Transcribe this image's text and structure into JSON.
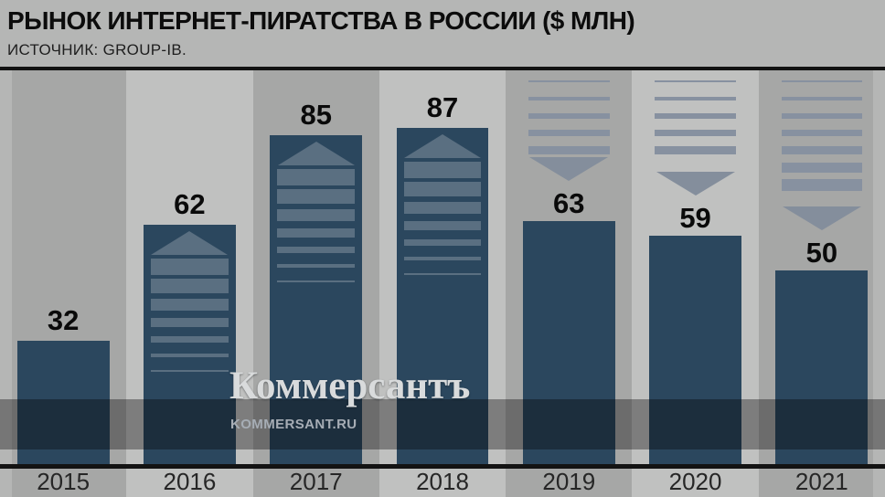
{
  "header": {
    "title": "РЫНОК ИНТЕРНЕТ-ПИРАТСТВА В РОССИИ ($ МЛН)",
    "source": "ИСТОЧНИК: GROUP-IB."
  },
  "watermark": {
    "logo": "Коммерсантъ",
    "url": "KOMMERSANT.RU"
  },
  "chart_data": {
    "type": "bar",
    "title": "РЫНОК ИНТЕРНЕТ-ПИРАТСТВА В РОССИИ ($ МЛН)",
    "source": "ИСТОЧНИК: GROUP-IB.",
    "unit": "$ млн",
    "categories": [
      "2015",
      "2016",
      "2017",
      "2018",
      "2019",
      "2020",
      "2021"
    ],
    "values": [
      32,
      62,
      85,
      87,
      63,
      59,
      50
    ],
    "trends": [
      "none",
      "up",
      "up",
      "up",
      "down",
      "down",
      "down"
    ],
    "ylim": [
      0,
      100
    ],
    "legend": "none",
    "grid": "off",
    "colors": {
      "bar": "#2b475e",
      "up_arrow_stripe": "#5a6f81",
      "down_arrow_stripe": "#8791a0",
      "down_arrow_triangle": "#848e9c",
      "column_dark": "#a6a7a6",
      "column_light": "#c0c1c0",
      "background": "#b5b6b5"
    }
  }
}
